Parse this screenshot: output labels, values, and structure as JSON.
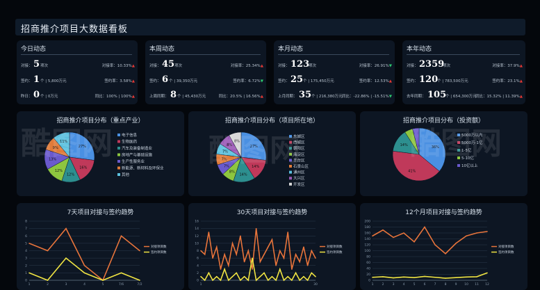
{
  "title": "招商推介项目大数据看板",
  "stats": [
    {
      "head": "今日动态",
      "rows": [
        {
          "lbl": "对接：",
          "big": "5",
          "unit": "项次",
          "rt": "对接率：10.33%",
          "dir": "up"
        },
        {
          "lbl": "签约：",
          "big": "1",
          "unit": "个 | 5,800万元",
          "rt": "签约率：3.58%",
          "dir": "up"
        },
        {
          "lbl": "昨日：",
          "big": "0",
          "unit": "个 | 0万元",
          "rt": "同比：100% | 100%",
          "dir": "up"
        }
      ]
    },
    {
      "head": "本周动态",
      "rows": [
        {
          "lbl": "对接：",
          "big": "45",
          "unit": "项次",
          "rt": "对接率：25.34%",
          "dir": "up"
        },
        {
          "lbl": "签约：",
          "big": "6",
          "unit": "个 | 39,350万元",
          "rt": "签约率：6.72%",
          "dir": "dn"
        },
        {
          "lbl": "上周同期：",
          "big": "8",
          "unit": "个 | 45,430万元",
          "rt": "同比：20.5% | 16.56%",
          "dir": "up"
        }
      ]
    },
    {
      "head": "本月动态",
      "rows": [
        {
          "lbl": "对接：",
          "big": "123",
          "unit": "项次",
          "rt": "对接率：26.91%",
          "dir": "dn"
        },
        {
          "lbl": "签约：",
          "big": "25",
          "unit": "个 | 175,450万元",
          "rt": "签约率：12.53%",
          "dir": "up"
        },
        {
          "lbl": "上月同期：",
          "big": "35",
          "unit": "个 | 216,380万元",
          "rt": "同比：-22.86% | -15.51%",
          "dir": "dn"
        }
      ]
    },
    {
      "head": "本年动态",
      "rows": [
        {
          "lbl": "对接：",
          "big": "2359",
          "unit": "项次",
          "rt": "对接率：37.9%",
          "dir": "up"
        },
        {
          "lbl": "签约：",
          "big": "120",
          "unit": "个 | 783,500万元",
          "rt": "签约率：23.1%",
          "dir": "up"
        },
        {
          "lbl": "去年同期：",
          "big": "105",
          "unit": "个 | 654,300万元",
          "rt": "同比：15.32% | 11.39%",
          "dir": "up"
        }
      ]
    }
  ],
  "colors": {
    "pie": [
      "#4a90e2",
      "#c0395a",
      "#2d8f8f",
      "#8dc63f",
      "#6a5acd",
      "#e07b39",
      "#5bc0de",
      "#9b59b6",
      "#d9d9d9",
      "#4caf50",
      "#f06292"
    ],
    "line1": "#e8743b",
    "line2": "#f0e442",
    "axis": "#8899aa",
    "grid": "#2a3a4c"
  },
  "chart_data": [
    {
      "type": "pie",
      "title": "招商推介项目分布（重点产业）",
      "legend": [
        "电子信息",
        "生物医药",
        "汽车及装备制造业",
        "房地产与基础设施",
        "生产性服务业",
        "新能源、新材料及环保业",
        "其他"
      ],
      "values": [
        27,
        16,
        12,
        12,
        13,
        9,
        11
      ],
      "labels": [
        "27%",
        "16%",
        "12%",
        "12%",
        "13%",
        "9%",
        "11%"
      ]
    },
    {
      "type": "pie",
      "title": "招商推介项目分布（项目所在地）",
      "legend": [
        "东城区",
        "西城区",
        "朝阳区",
        "海淀区",
        "丰台区",
        "石景山区",
        "通州区",
        "大兴区",
        "开发区"
      ],
      "values": [
        27,
        14,
        14,
        8,
        7,
        7,
        7,
        8,
        8
      ],
      "labels": [
        "27%",
        "14%",
        "14%",
        "8%",
        "7%",
        "7%",
        "7%",
        "8%",
        "8%"
      ]
    },
    {
      "type": "pie",
      "title": "招商推介项目分布（投资额）",
      "legend": [
        "5000万以内",
        "5000万-1亿",
        "1-5亿",
        "5-10亿",
        "10亿以上"
      ],
      "values": [
        36,
        41,
        14,
        5,
        4
      ],
      "labels": [
        "36%",
        "41%",
        "14%",
        "",
        ""
      ]
    },
    {
      "type": "line",
      "title": "7天项目对接与签约趋势",
      "x": [
        "1",
        "2",
        "3",
        "4",
        "5",
        "7/6",
        "7/2"
      ],
      "ylim": [
        0,
        8
      ],
      "yticks": [
        0,
        1,
        2,
        3,
        4,
        5,
        6,
        7,
        8
      ],
      "series": [
        {
          "name": "对接项目数",
          "values": [
            5,
            4,
            7,
            2,
            0,
            6,
            4
          ]
        },
        {
          "name": "签约项目数",
          "values": [
            1,
            0,
            3,
            1,
            0,
            1,
            0
          ]
        }
      ]
    },
    {
      "type": "line",
      "title": "30天项目对接与签约趋势",
      "ylim": [
        0,
        16
      ],
      "yticks": [
        0,
        2,
        4,
        6,
        8,
        10,
        12,
        14,
        16
      ],
      "x": [
        "1",
        "",
        "",
        "",
        "",
        "",
        "",
        "",
        "",
        "",
        "",
        "",
        "",
        "",
        "",
        "",
        "",
        "",
        "",
        "",
        "",
        "",
        "",
        "",
        "",
        "",
        "",
        "",
        "",
        "30"
      ],
      "series": [
        {
          "name": "对接项目数",
          "values": [
            8,
            7,
            13,
            6,
            9,
            3,
            7,
            4,
            10,
            7,
            12,
            5,
            8,
            3,
            14,
            5,
            7,
            9,
            11,
            4,
            8,
            6,
            13,
            3,
            7,
            5,
            9,
            4,
            8,
            6
          ]
        },
        {
          "name": "签约项目数",
          "values": [
            1,
            0,
            2,
            0,
            1,
            0,
            3,
            0,
            1,
            2,
            0,
            1,
            0,
            6,
            0,
            1,
            2,
            0,
            1,
            0,
            3,
            0,
            1,
            0,
            2,
            0,
            1,
            0,
            2,
            1
          ]
        }
      ]
    },
    {
      "type": "line",
      "title": "12个月项目对接与签约趋势",
      "ylim": [
        0,
        200
      ],
      "yticks": [
        0,
        20,
        40,
        60,
        80,
        100,
        120,
        140,
        160,
        180,
        200
      ],
      "x": [
        "1",
        "2",
        "3",
        "4",
        "5",
        "6",
        "7",
        "8",
        "9",
        "10",
        "11",
        "12"
      ],
      "series": [
        {
          "name": "对接项目数",
          "values": [
            150,
            170,
            145,
            160,
            130,
            180,
            120,
            90,
            125,
            150,
            160,
            165
          ]
        },
        {
          "name": "签约项目数",
          "values": [
            10,
            12,
            8,
            11,
            9,
            13,
            10,
            7,
            9,
            11,
            12,
            25
          ]
        }
      ]
    }
  ]
}
